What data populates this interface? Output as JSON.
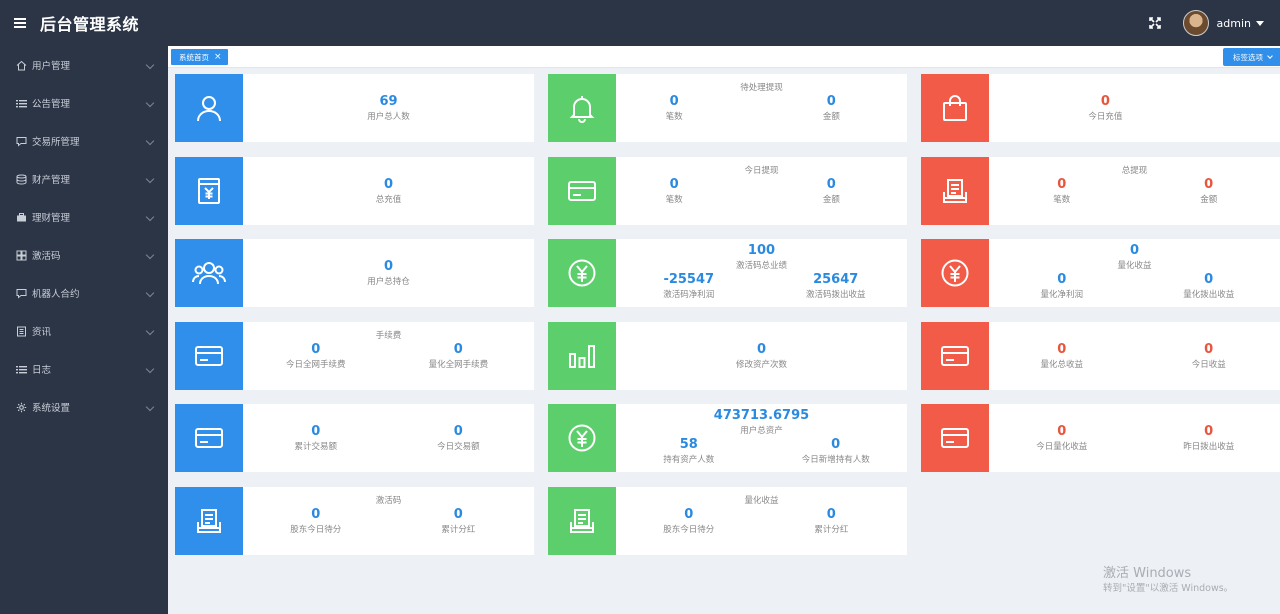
{
  "header": {
    "title": "后台管理系统",
    "user": "admin"
  },
  "sidebar": {
    "items": [
      {
        "label": "用户管理",
        "icon": "home-icon"
      },
      {
        "label": "公告管理",
        "icon": "list-icon"
      },
      {
        "label": "交易所管理",
        "icon": "chat-icon"
      },
      {
        "label": "财产管理",
        "icon": "database-icon"
      },
      {
        "label": "理财管理",
        "icon": "briefcase-icon"
      },
      {
        "label": "激活码",
        "icon": "grid-icon"
      },
      {
        "label": "机器人合约",
        "icon": "chat-icon"
      },
      {
        "label": "资讯",
        "icon": "book-icon"
      },
      {
        "label": "日志",
        "icon": "list-icon"
      },
      {
        "label": "系统设置",
        "icon": "gear-icon"
      }
    ]
  },
  "tabs": {
    "active": "系统首页",
    "close": "×",
    "options": "标签选项"
  },
  "cards": {
    "c1": {
      "icon": "user-icon",
      "stats": [
        {
          "value": "69",
          "label": "用户总人数"
        }
      ]
    },
    "c2": {
      "icon": "bell-icon",
      "title": "待处理提现",
      "stats": [
        {
          "value": "0",
          "label": "笔数"
        },
        {
          "value": "0",
          "label": "金额"
        }
      ]
    },
    "c3": {
      "icon": "shopping-bag-icon",
      "stats": [
        {
          "value": "0",
          "label": "今日充值"
        }
      ]
    },
    "c4": {
      "icon": "yuan-box-icon",
      "stats": [
        {
          "value": "0",
          "label": "总充值"
        }
      ]
    },
    "c5": {
      "icon": "card-icon",
      "title": "今日提现",
      "stats": [
        {
          "value": "0",
          "label": "笔数"
        },
        {
          "value": "0",
          "label": "金额"
        }
      ]
    },
    "c6": {
      "icon": "receipt-icon",
      "title": "总提现",
      "stats": [
        {
          "value": "0",
          "label": "笔数"
        },
        {
          "value": "0",
          "label": "金额"
        }
      ]
    },
    "c7": {
      "icon": "users-icon",
      "stats": [
        {
          "value": "0",
          "label": "用户总持仓"
        }
      ]
    },
    "c8": {
      "icon": "yuan-circle-icon",
      "stats": [
        {
          "value": "100",
          "label": "激活码总业绩"
        },
        {
          "value": "-25547",
          "label": "激活码净利润"
        },
        {
          "value": "25647",
          "label": "激活码拨出收益"
        }
      ]
    },
    "c9": {
      "icon": "yuan-circle-icon",
      "stats": [
        {
          "value": "0",
          "label": "量化收益"
        },
        {
          "value": "0",
          "label": "量化净利润"
        },
        {
          "value": "0",
          "label": "量化拨出收益"
        }
      ]
    },
    "c10": {
      "icon": "card-icon",
      "title": "手续费",
      "stats": [
        {
          "value": "0",
          "label": "今日全网手续费"
        },
        {
          "value": "0",
          "label": "量化全网手续费"
        }
      ]
    },
    "c11": {
      "icon": "bar-chart-icon",
      "stats": [
        {
          "value": "0",
          "label": "修改资产次数"
        }
      ]
    },
    "c12": {
      "icon": "card-icon",
      "stats": [
        {
          "value": "0",
          "label": "量化总收益"
        },
        {
          "value": "0",
          "label": "今日收益"
        }
      ]
    },
    "c13": {
      "icon": "card-icon",
      "stats": [
        {
          "value": "0",
          "label": "累计交易额"
        },
        {
          "value": "0",
          "label": "今日交易额"
        }
      ]
    },
    "c14": {
      "icon": "yuan-circle-icon",
      "stats": [
        {
          "value": "473713.6795",
          "label": "用户总资产"
        },
        {
          "value": "58",
          "label": "持有资产人数"
        },
        {
          "value": "0",
          "label": "今日新增持有人数"
        }
      ]
    },
    "c15": {
      "icon": "card-icon",
      "stats": [
        {
          "value": "0",
          "label": "今日量化收益"
        },
        {
          "value": "0",
          "label": "昨日拨出收益"
        }
      ]
    },
    "c16": {
      "icon": "receipt-icon",
      "title": "激活码",
      "stats": [
        {
          "value": "0",
          "label": "股东今日待分"
        },
        {
          "value": "0",
          "label": "累计分红"
        }
      ]
    },
    "c17": {
      "icon": "receipt-icon",
      "title": "量化收益",
      "stats": [
        {
          "value": "0",
          "label": "股东今日待分"
        },
        {
          "value": "0",
          "label": "累计分红"
        }
      ]
    }
  },
  "watermark": {
    "line1": "激活 Windows",
    "line2": "转到\"设置\"以激活 Windows。"
  }
}
